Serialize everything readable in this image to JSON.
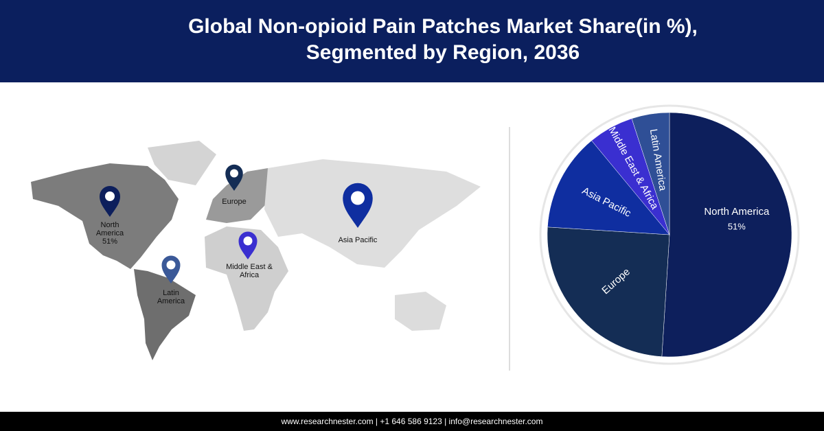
{
  "chart_data": {
    "type": "pie",
    "title": "Global Non-opioid Pain Patches Market Share(in %),",
    "subtitle": "Segmented by Region, 2036",
    "categories": [
      "North America",
      "Europe",
      "Asia Pacific",
      "Middle East & Africa",
      "Latin America"
    ],
    "values": [
      51,
      25,
      13,
      6,
      5
    ],
    "value_labels": [
      "51%",
      null,
      null,
      null,
      null
    ],
    "colors": [
      "#0d1f5c",
      "#142d55",
      "#0f2ea0",
      "#3a2fd0",
      "#2f4f96"
    ]
  },
  "footer": "www.researchnester.com | +1 646 586 9123 | info@researchnester.com"
}
